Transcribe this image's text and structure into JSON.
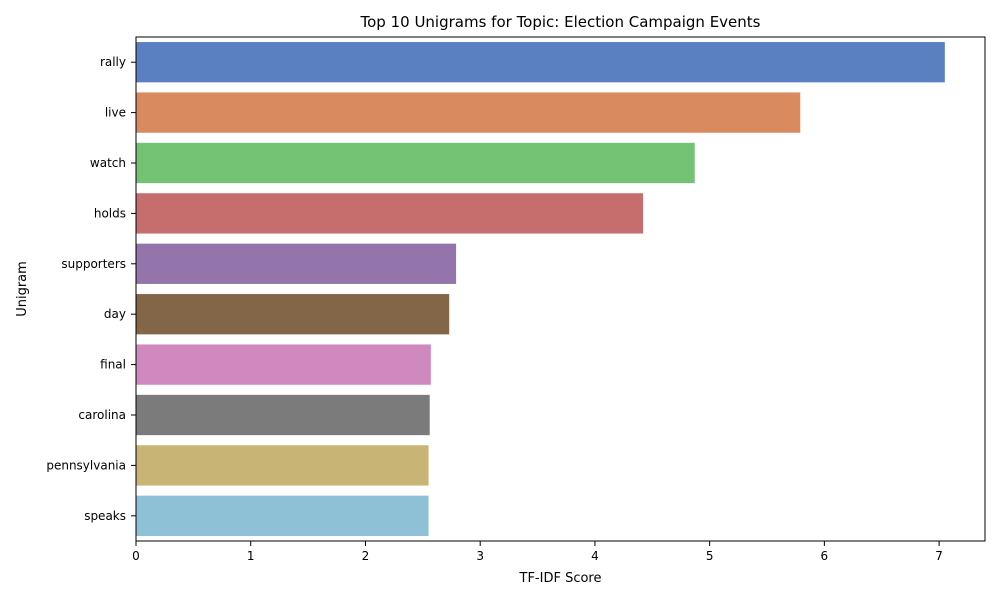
{
  "chart_data": {
    "type": "bar",
    "orientation": "horizontal",
    "title": "Top 10 Unigrams for Topic: Election Campaign Events",
    "xlabel": "TF-IDF Score",
    "ylabel": "Unigram",
    "xlim": [
      0,
      7.4
    ],
    "xticks": [
      "0",
      "1",
      "2",
      "3",
      "4",
      "5",
      "6",
      "7"
    ],
    "grid": false,
    "categories": [
      "rally",
      "live",
      "watch",
      "holds",
      "supporters",
      "day",
      "final",
      "carolina",
      "pennsylvania",
      "speaks"
    ],
    "values": [
      7.05,
      5.79,
      4.87,
      4.42,
      2.79,
      2.73,
      2.57,
      2.56,
      2.55,
      2.55
    ],
    "colors": [
      "#5b80c2",
      "#d98b5f",
      "#74c273",
      "#c66e6e",
      "#9475ab",
      "#836648",
      "#d089bf",
      "#7b7b7b",
      "#c8b474",
      "#8ec0d6"
    ]
  }
}
